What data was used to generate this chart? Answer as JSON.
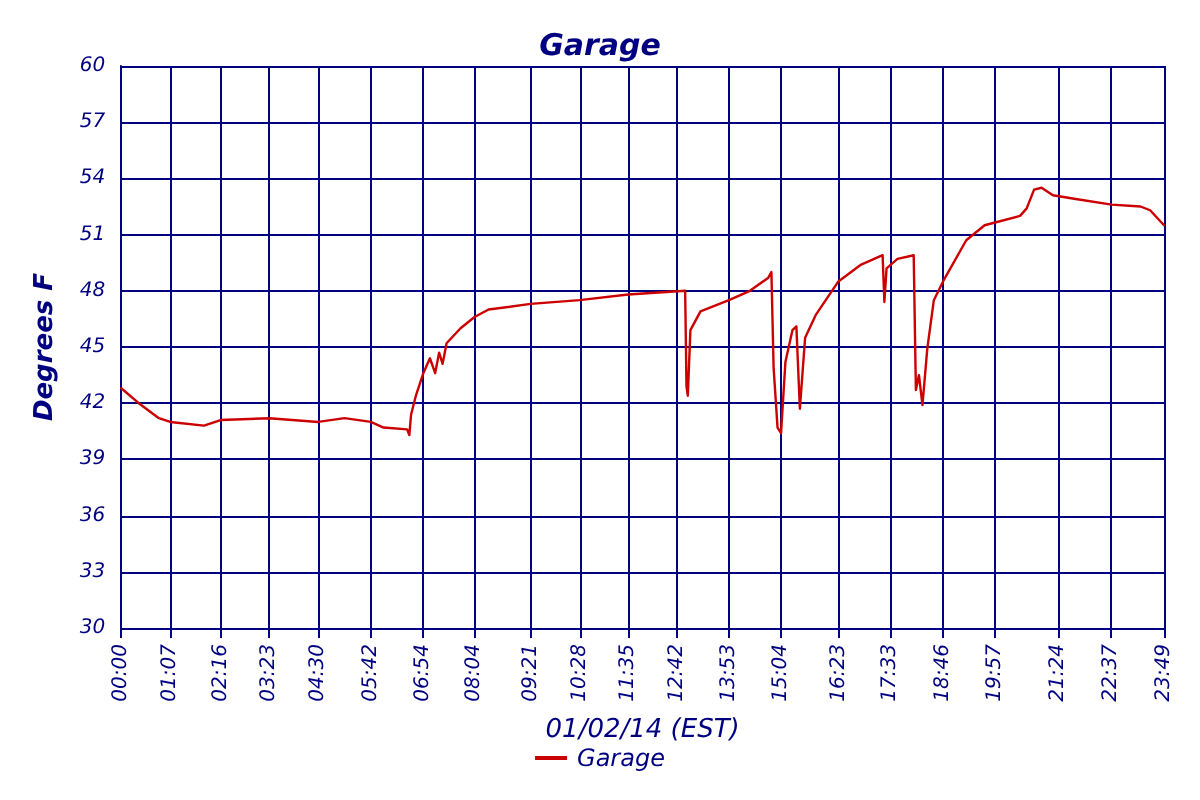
{
  "chart_data": {
    "type": "line",
    "title": "Garage",
    "xlabel": "01/02/14 (EST)",
    "ylabel": "Degrees F",
    "legend": "bottom",
    "grid": true,
    "marker": "none",
    "line_style": "solid",
    "xlim": [
      0,
      23.817
    ],
    "xticks": [
      {
        "value": 0,
        "label": "00:00"
      },
      {
        "value": 1.117,
        "label": "01:07"
      },
      {
        "value": 2.267,
        "label": "02:16"
      },
      {
        "value": 3.383,
        "label": "03:23"
      },
      {
        "value": 4.5,
        "label": "04:30"
      },
      {
        "value": 5.7,
        "label": "05:42"
      },
      {
        "value": 6.9,
        "label": "06:54"
      },
      {
        "value": 8.067,
        "label": "08:04"
      },
      {
        "value": 9.35,
        "label": "09:21"
      },
      {
        "value": 10.467,
        "label": "10:28"
      },
      {
        "value": 11.583,
        "label": "11:35"
      },
      {
        "value": 12.7,
        "label": "12:42"
      },
      {
        "value": 13.883,
        "label": "13:53"
      },
      {
        "value": 15.067,
        "label": "15:04"
      },
      {
        "value": 16.383,
        "label": "16:23"
      },
      {
        "value": 17.55,
        "label": "17:33"
      },
      {
        "value": 18.767,
        "label": "18:46"
      },
      {
        "value": 19.95,
        "label": "19:57"
      },
      {
        "value": 21.4,
        "label": "21:24"
      },
      {
        "value": 22.617,
        "label": "22:37"
      },
      {
        "value": 23.817,
        "label": "23:49"
      }
    ],
    "ylim": [
      30,
      60
    ],
    "yticks": [
      30,
      33,
      36,
      39,
      42,
      45,
      48,
      51,
      54,
      57,
      60
    ],
    "series": [
      {
        "name": "Garage",
        "color": "#cc0000",
        "x": [
          0,
          0.4,
          0.86,
          1.12,
          1.89,
          2.27,
          3.38,
          4.5,
          5.1,
          5.7,
          5.99,
          6.53,
          6.58,
          6.62,
          6.73,
          6.9,
          7.05,
          7.17,
          7.26,
          7.34,
          7.43,
          7.75,
          8.07,
          8.39,
          9.35,
          10.47,
          11.58,
          12.88,
          12.91,
          12.94,
          13.0,
          13.23,
          13.88,
          14.36,
          14.78,
          14.85,
          14.9,
          14.99,
          15.07,
          15.17,
          15.33,
          15.42,
          15.5,
          15.62,
          15.86,
          16.38,
          16.9,
          17.39,
          17.43,
          17.48,
          17.73,
          18.1,
          18.15,
          18.22,
          18.3,
          18.41,
          18.56,
          18.77,
          19.3,
          19.72,
          20.53,
          20.68,
          20.85,
          21.02,
          21.28,
          21.8,
          22.62,
          23.28,
          23.5,
          23.817
        ],
        "values": [
          42.8,
          42,
          41.2,
          41,
          40.8,
          41.1,
          41.2,
          41,
          41.2,
          41,
          40.7,
          40.6,
          40.3,
          41.4,
          42.4,
          43.6,
          44.4,
          43.6,
          44.7,
          44.1,
          45.2,
          46,
          46.6,
          47,
          47.3,
          47.5,
          47.8,
          48,
          42.9,
          42.4,
          45.9,
          46.9,
          47.5,
          48,
          48.7,
          49,
          43.9,
          40.7,
          40.4,
          44.2,
          45.9,
          46.1,
          41.7,
          45.5,
          46.7,
          48.5,
          49.4,
          49.9,
          47.4,
          49.2,
          49.7,
          49.9,
          42.7,
          43.5,
          41.9,
          44.9,
          47.5,
          48.5,
          50.7,
          51.5,
          52,
          52.4,
          53.4,
          53.5,
          53.1,
          52.9,
          52.6,
          52.5,
          52.3,
          51.5
        ]
      }
    ]
  }
}
